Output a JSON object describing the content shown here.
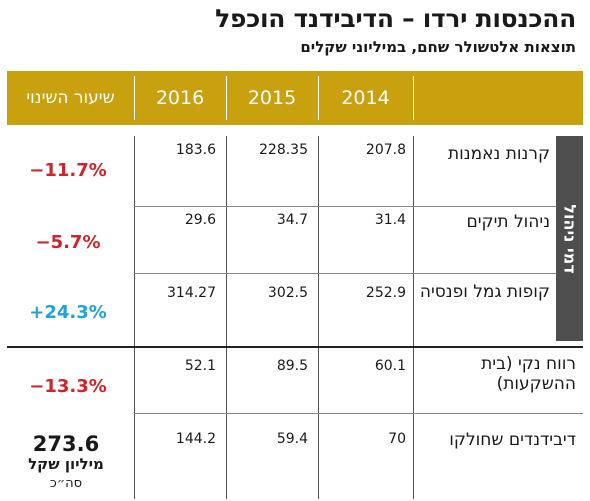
{
  "title": "ההכנסות ירדו – הדיבידנד הוכפל",
  "subtitle": "תוצאות אלטשולר שחם, במיליוני שקלים",
  "side_label": "דמי ניהול",
  "colors": {
    "header": "#c9a10f",
    "sideband": "#4e4e4e",
    "negative": "#d0242a",
    "positive": "#21a2db"
  },
  "chart_data": {
    "type": "table",
    "title": "ההכנסות ירדו – הדיבידנד הוכפל",
    "subtitle": "תוצאות אלטשולר שחם, במיליוני שקלים",
    "columns": [
      "2014",
      "2015",
      "2016"
    ],
    "change_header": "שיעור השינוי",
    "rows": [
      {
        "label": "קרנות נאמנות",
        "values": [
          "207.8",
          "228.35",
          "183.6"
        ],
        "change": "−11.7%",
        "change_dir": "neg"
      },
      {
        "label": "ניהול תיקים",
        "values": [
          "31.4",
          "34.7",
          "29.6"
        ],
        "change": "−5.7%",
        "change_dir": "neg"
      },
      {
        "label": "קופות גמל ופנסיה",
        "values": [
          "252.9",
          "302.5",
          "314.27"
        ],
        "change": "+24.3%",
        "change_dir": "pos"
      },
      {
        "label": "רווח נקי (בית ההשקעות)",
        "values": [
          "60.1",
          "89.5",
          "52.1"
        ],
        "change": "−13.3%",
        "change_dir": "neg"
      },
      {
        "label": "דיבידנדים שחולקו",
        "values": [
          "70",
          "59.4",
          "144.2"
        ]
      }
    ],
    "total": {
      "value": "273.6",
      "unit": "מיליון שקל",
      "abbr": "סה״כ"
    }
  }
}
